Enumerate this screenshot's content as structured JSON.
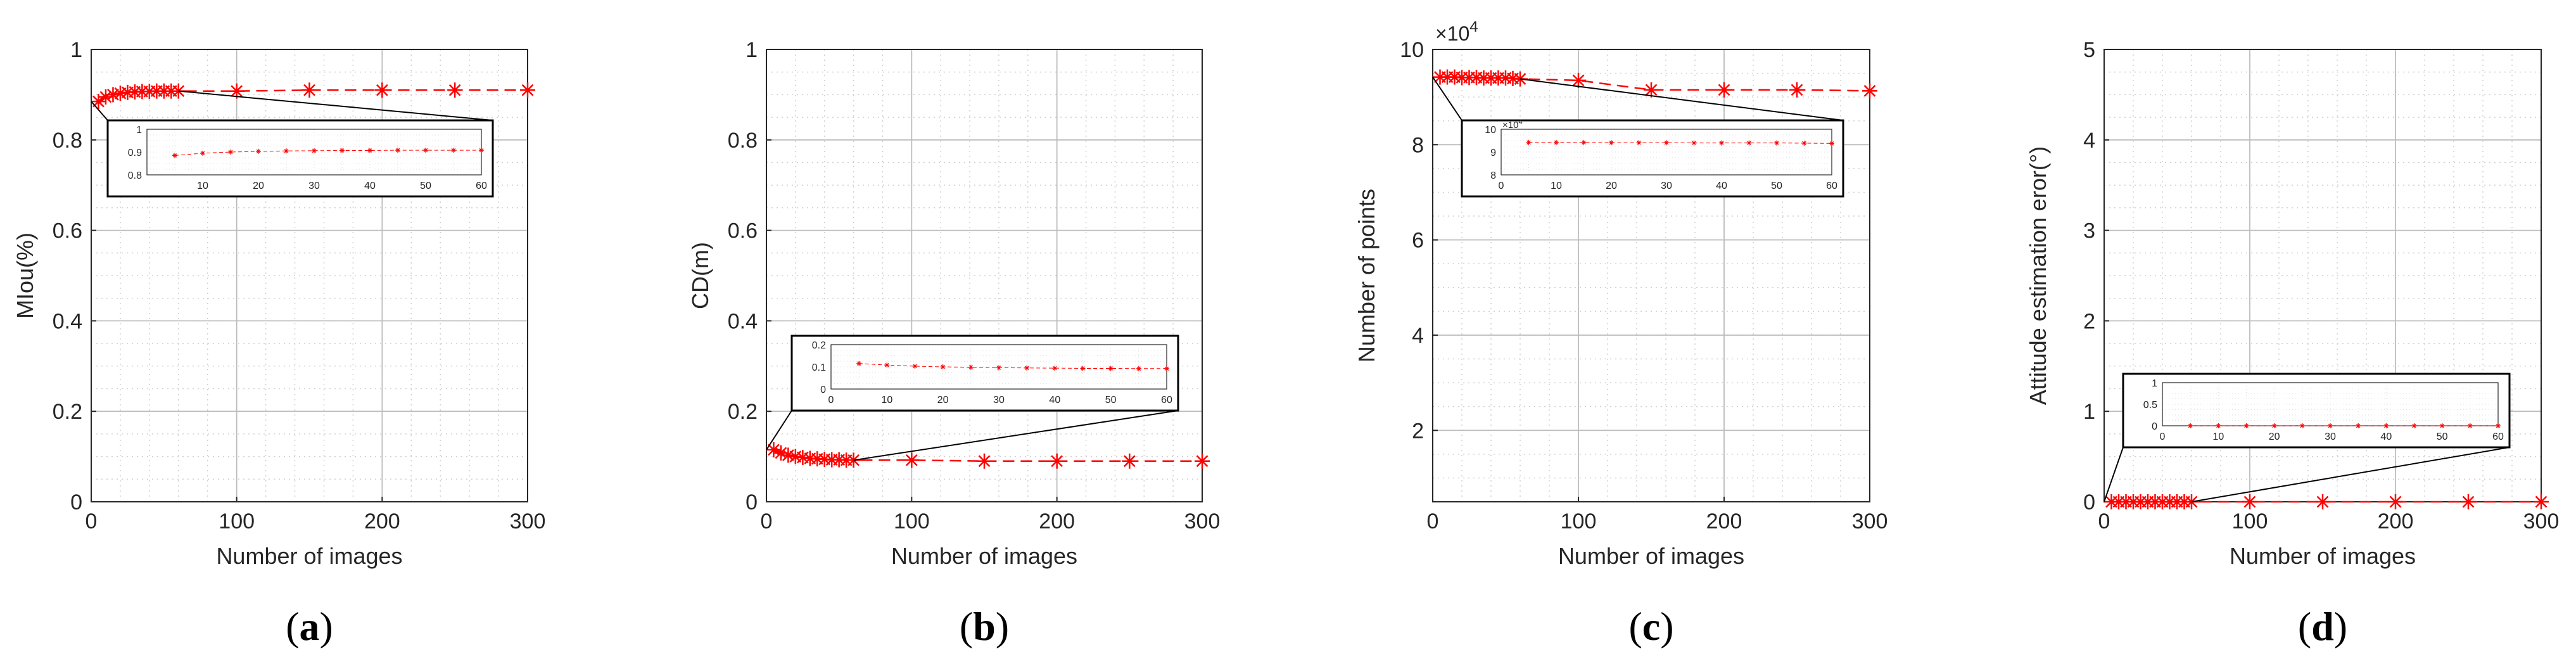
{
  "chart_data": [
    {
      "type": "line",
      "panel": "(a)",
      "caption_letter": "a",
      "xlabel": "Number of images",
      "ylabel": "MIou(%)",
      "xlim": [
        0,
        300
      ],
      "ylim": [
        0,
        1
      ],
      "xticks": [
        "0",
        "100",
        "200",
        "300"
      ],
      "yticks": [
        "0",
        "0.2",
        "0.4",
        "0.6",
        "0.8",
        "1"
      ],
      "grid": true,
      "series": [
        {
          "name": "MIou",
          "color": "#ff0000",
          "x": [
            5,
            10,
            15,
            20,
            25,
            30,
            35,
            40,
            45,
            50,
            55,
            60,
            100,
            150,
            200,
            250,
            300
          ],
          "values": [
            0.885,
            0.895,
            0.9,
            0.903,
            0.905,
            0.906,
            0.907,
            0.907,
            0.908,
            0.908,
            0.908,
            0.908,
            0.908,
            0.91,
            0.91,
            0.91,
            0.91
          ]
        }
      ],
      "inset": {
        "xlim": [
          0,
          60
        ],
        "ylim": [
          0.8,
          1
        ],
        "xticks": [
          "10",
          "20",
          "30",
          "40",
          "50",
          "60"
        ],
        "yticks": [
          "0.8",
          "0.9",
          "1"
        ],
        "location": "upper-right"
      }
    },
    {
      "type": "line",
      "panel": "(b)",
      "caption_letter": "b",
      "xlabel": "Number of images",
      "ylabel": "CD(m)",
      "xlim": [
        0,
        300
      ],
      "ylim": [
        0,
        1
      ],
      "xticks": [
        "0",
        "100",
        "200",
        "300"
      ],
      "yticks": [
        "0",
        "0.2",
        "0.4",
        "0.6",
        "0.8",
        "1"
      ],
      "grid": true,
      "series": [
        {
          "name": "CD",
          "color": "#ff0000",
          "x": [
            5,
            10,
            15,
            20,
            25,
            30,
            35,
            40,
            45,
            50,
            55,
            60,
            100,
            150,
            200,
            250,
            300
          ],
          "values": [
            0.115,
            0.108,
            0.103,
            0.1,
            0.098,
            0.096,
            0.095,
            0.094,
            0.093,
            0.093,
            0.092,
            0.092,
            0.092,
            0.09,
            0.09,
            0.09,
            0.09
          ]
        }
      ],
      "inset": {
        "xlim": [
          0,
          60
        ],
        "ylim": [
          0,
          0.2
        ],
        "xticks": [
          "0",
          "10",
          "20",
          "30",
          "40",
          "50",
          "60"
        ],
        "yticks": [
          "0",
          "0.1",
          "0.2"
        ],
        "location": "lower-right"
      }
    },
    {
      "type": "line",
      "panel": "(c)",
      "caption_letter": "c",
      "xlabel": "Number of images",
      "ylabel": "Number of points",
      "multiplier_base": "×10",
      "multiplier_exp": "4",
      "xlim": [
        0,
        300
      ],
      "ylim": [
        0.5,
        10
      ],
      "xticks": [
        "0",
        "100",
        "200",
        "300"
      ],
      "yticks": [
        "2",
        "4",
        "6",
        "8",
        "10"
      ],
      "grid": true,
      "series": [
        {
          "name": "Number of points",
          "color": "#ff0000",
          "x": [
            5,
            10,
            15,
            20,
            25,
            30,
            35,
            40,
            45,
            50,
            55,
            60,
            100,
            150,
            200,
            250,
            300
          ],
          "values": [
            9.42,
            9.42,
            9.42,
            9.41,
            9.41,
            9.41,
            9.4,
            9.4,
            9.4,
            9.4,
            9.39,
            9.38,
            9.35,
            9.15,
            9.15,
            9.15,
            9.13
          ]
        }
      ],
      "inset": {
        "xlim": [
          0,
          60
        ],
        "ylim": [
          8,
          10
        ],
        "xticks": [
          "0",
          "10",
          "20",
          "30",
          "40",
          "50",
          "60"
        ],
        "yticks": [
          "8",
          "9",
          "10"
        ],
        "multiplier_base": "×10",
        "multiplier_exp": "4",
        "location": "upper-right"
      }
    },
    {
      "type": "line",
      "panel": "(d)",
      "caption_letter": "d",
      "xlabel": "Number of images",
      "ylabel": "Attitude estimation eror(°)",
      "xlim": [
        0,
        300
      ],
      "ylim": [
        0,
        5
      ],
      "xticks": [
        "0",
        "100",
        "200",
        "300"
      ],
      "yticks": [
        "0",
        "1",
        "2",
        "3",
        "4",
        "5"
      ],
      "grid": true,
      "series": [
        {
          "name": "Attitude estimation error",
          "color": "#ff0000",
          "x": [
            5,
            10,
            15,
            20,
            25,
            30,
            35,
            40,
            45,
            50,
            55,
            60,
            100,
            150,
            200,
            250,
            300
          ],
          "values": [
            0,
            0,
            0,
            0,
            0,
            0,
            0,
            0,
            0,
            0,
            0,
            0,
            0,
            0,
            0,
            0,
            0
          ]
        }
      ],
      "inset": {
        "xlim": [
          0,
          60
        ],
        "ylim": [
          0,
          1
        ],
        "xticks": [
          "0",
          "10",
          "20",
          "30",
          "40",
          "50",
          "60"
        ],
        "yticks": [
          "0",
          "0.5",
          "1"
        ],
        "location": "lower-right"
      }
    }
  ]
}
